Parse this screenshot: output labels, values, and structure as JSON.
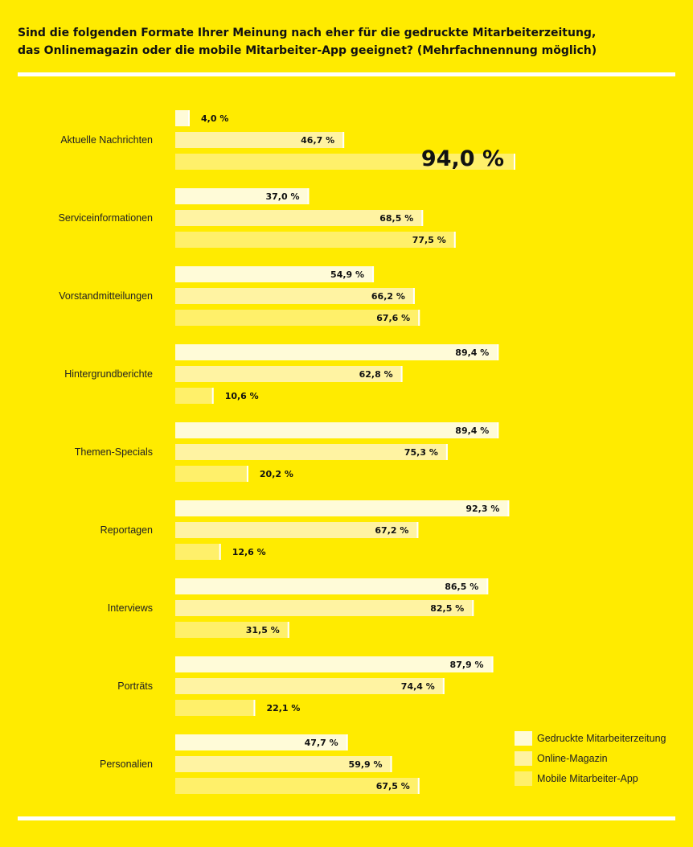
{
  "title": {
    "line1": "Sind die folgenden Formate Ihrer Meinung nach eher für die gedruckte Mitarbeiterzeitung,",
    "line2": "das Onlinemagazin oder die mobile Mitarbeiter-App geeignet? (Mehrfachnennung möglich)"
  },
  "colors": {
    "background": "#ffeb00",
    "print": "#fffbd8",
    "online": "#fff3a2",
    "app": "#fff06a",
    "rule": "#ffffff"
  },
  "legend": [
    {
      "name": "Gedruckte Mitarbeiterzeitung",
      "color": "#fffbd8"
    },
    {
      "name": "Online-Magazin",
      "color": "#fff3a2"
    },
    {
      "name": "Mobile Mitarbeiter-App",
      "color": "#fff06a"
    }
  ],
  "chart_data": {
    "type": "bar",
    "orientation": "horizontal",
    "title": "Sind die folgenden Formate Ihrer Meinung nach eher für die gedruckte Mitarbeiterzeitung, das Onlinemagazin oder die mobile Mitarbeiter-App geeignet? (Mehrfachnennung möglich)",
    "xlim": [
      0,
      100
    ],
    "grid": false,
    "legend_position": "bottom-right",
    "categories": [
      "Aktuelle Nachrichten",
      "Serviceinformationen",
      "Vorstandmitteilungen",
      "Hintergrundberichte",
      "Themen-Specials",
      "Reportagen",
      "Interviews",
      "Porträts",
      "Personalien"
    ],
    "series": [
      {
        "name": "Gedruckte Mitarbeiterzeitung",
        "values": [
          4.0,
          37.0,
          54.9,
          89.4,
          89.4,
          92.3,
          86.5,
          87.9,
          47.7
        ],
        "labels": [
          "4,0 %",
          "37,0 %",
          "54,9 %",
          "89,4 %",
          "89,4 %",
          "92,3 %",
          "86,5 %",
          "87,9 %",
          "47,7 %"
        ]
      },
      {
        "name": "Online-Magazin",
        "values": [
          46.7,
          68.5,
          66.2,
          62.8,
          75.3,
          67.2,
          82.5,
          74.4,
          59.9
        ],
        "labels": [
          "46,7 %",
          "68,5 %",
          "66,2 %",
          "62,8 %",
          "75,3 %",
          "67,2 %",
          "82,5 %",
          "74,4 %",
          "59,9 %"
        ]
      },
      {
        "name": "Mobile Mitarbeiter-App",
        "values": [
          94.0,
          77.5,
          67.6,
          10.6,
          20.2,
          12.6,
          31.5,
          22.1,
          67.5
        ],
        "labels": [
          "94,0 %",
          "77,5 %",
          "67,6 %",
          "10,6 %",
          "20,2 %",
          "12,6 %",
          "31,5 %",
          "22,1 %",
          "67,5 %"
        ]
      }
    ]
  }
}
